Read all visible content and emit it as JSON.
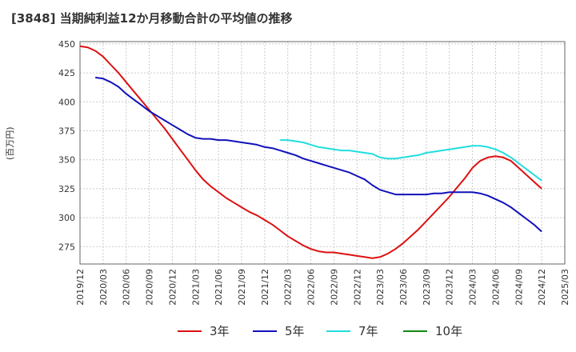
{
  "chart_data": {
    "type": "line",
    "title": "[3848]  当期純利益12か月移動合計の平均値の推移",
    "ylabel": "(百万円)",
    "xlabel": "",
    "ylim": [
      260,
      452
    ],
    "yticks": [
      275,
      300,
      325,
      350,
      375,
      400,
      425,
      450
    ],
    "x_ticks": [
      "2019/12",
      "2020/03",
      "2020/06",
      "2020/09",
      "2020/12",
      "2021/03",
      "2021/06",
      "2021/09",
      "2021/12",
      "2022/03",
      "2022/06",
      "2022/09",
      "2022/12",
      "2023/03",
      "2023/06",
      "2023/09",
      "2023/12",
      "2024/03",
      "2024/06",
      "2024/09",
      "2024/12",
      "2025/03"
    ],
    "grid": true,
    "legend_position": "bottom",
    "series": [
      {
        "name": "3年",
        "color": "#dd1111",
        "x": [
          "2019/12",
          "2020/01",
          "2020/02",
          "2020/03",
          "2020/04",
          "2020/05",
          "2020/06",
          "2020/07",
          "2020/08",
          "2020/09",
          "2020/10",
          "2020/11",
          "2020/12",
          "2021/01",
          "2021/02",
          "2021/03",
          "2021/04",
          "2021/05",
          "2021/06",
          "2021/07",
          "2021/08",
          "2021/09",
          "2021/10",
          "2021/11",
          "2021/12",
          "2022/01",
          "2022/02",
          "2022/03",
          "2022/04",
          "2022/05",
          "2022/06",
          "2022/07",
          "2022/08",
          "2022/09",
          "2022/10",
          "2022/11",
          "2022/12",
          "2023/01",
          "2023/02",
          "2023/03",
          "2023/04",
          "2023/05",
          "2023/06",
          "2023/07",
          "2023/08",
          "2023/09",
          "2023/10",
          "2023/11",
          "2023/12",
          "2024/01",
          "2024/02",
          "2024/03",
          "2024/04",
          "2024/05",
          "2024/06",
          "2024/07",
          "2024/08",
          "2024/09",
          "2024/10",
          "2024/11",
          "2024/12"
        ],
        "values": [
          448,
          447,
          444,
          439,
          432,
          425,
          417,
          409,
          401,
          393,
          385,
          377,
          368,
          359,
          350,
          341,
          333,
          327,
          322,
          317,
          313,
          309,
          305,
          302,
          298,
          294,
          289,
          284,
          280,
          276,
          273,
          271,
          270,
          270,
          269,
          268,
          267,
          266,
          265,
          266,
          269,
          273,
          278,
          284,
          290,
          297,
          304,
          311,
          318,
          326,
          334,
          343,
          349,
          352,
          353,
          352,
          349,
          343,
          337,
          331,
          325
        ]
      },
      {
        "name": "5年",
        "color": "#1111bb",
        "x": [
          "2020/02",
          "2020/03",
          "2020/04",
          "2020/05",
          "2020/06",
          "2020/07",
          "2020/08",
          "2020/09",
          "2020/10",
          "2020/11",
          "2020/12",
          "2021/01",
          "2021/02",
          "2021/03",
          "2021/04",
          "2021/05",
          "2021/06",
          "2021/07",
          "2021/08",
          "2021/09",
          "2021/10",
          "2021/11",
          "2021/12",
          "2022/01",
          "2022/02",
          "2022/03",
          "2022/04",
          "2022/05",
          "2022/06",
          "2022/07",
          "2022/08",
          "2022/09",
          "2022/10",
          "2022/11",
          "2022/12",
          "2023/01",
          "2023/02",
          "2023/03",
          "2023/04",
          "2023/05",
          "2023/06",
          "2023/07",
          "2023/08",
          "2023/09",
          "2023/10",
          "2023/11",
          "2023/12",
          "2024/01",
          "2024/02",
          "2024/03",
          "2024/04",
          "2024/05",
          "2024/06",
          "2024/07",
          "2024/08",
          "2024/09",
          "2024/10",
          "2024/11",
          "2024/12"
        ],
        "values": [
          421,
          420,
          417,
          413,
          407,
          402,
          397,
          392,
          388,
          384,
          380,
          376,
          372,
          369,
          368,
          368,
          367,
          367,
          366,
          365,
          364,
          363,
          361,
          360,
          358,
          356,
          354,
          351,
          349,
          347,
          345,
          343,
          341,
          339,
          336,
          333,
          328,
          324,
          322,
          320,
          320,
          320,
          320,
          320,
          321,
          321,
          322,
          322,
          322,
          322,
          321,
          319,
          316,
          313,
          309,
          304,
          299,
          294,
          288
        ]
      },
      {
        "name": "7年",
        "color": "#22dddd",
        "x": [
          "2022/02",
          "2022/03",
          "2022/04",
          "2022/05",
          "2022/06",
          "2022/07",
          "2022/08",
          "2022/09",
          "2022/10",
          "2022/11",
          "2022/12",
          "2023/01",
          "2023/02",
          "2023/03",
          "2023/04",
          "2023/05",
          "2023/06",
          "2023/07",
          "2023/08",
          "2023/09",
          "2023/10",
          "2023/11",
          "2023/12",
          "2024/01",
          "2024/02",
          "2024/03",
          "2024/04",
          "2024/05",
          "2024/06",
          "2024/07",
          "2024/08",
          "2024/09",
          "2024/10",
          "2024/11",
          "2024/12"
        ],
        "values": [
          367,
          367,
          366,
          365,
          363,
          361,
          360,
          359,
          358,
          358,
          357,
          356,
          355,
          352,
          351,
          351,
          352,
          353,
          354,
          356,
          357,
          358,
          359,
          360,
          361,
          362,
          362,
          361,
          359,
          356,
          352,
          347,
          342,
          337,
          332
        ]
      },
      {
        "name": "10年",
        "color": "#118811",
        "x": [],
        "values": []
      }
    ]
  }
}
